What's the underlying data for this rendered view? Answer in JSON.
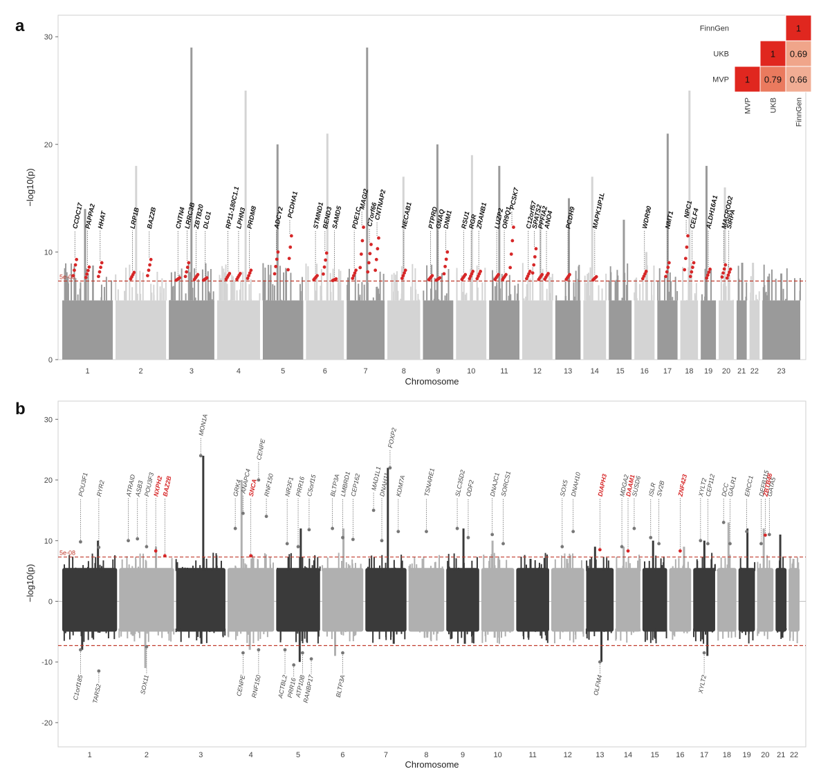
{
  "panel_a_letter": "a",
  "panel_b_letter": "b",
  "chart_data": [
    {
      "type": "scatter",
      "panel": "a",
      "subtype": "manhattan",
      "ylabel": "−log10(p)",
      "xlabel": "Chromosome",
      "ylim": [
        0,
        32
      ],
      "yticks": [
        0,
        10,
        20,
        30
      ],
      "threshold_label": "5e-08",
      "threshold": 7.3,
      "chromosomes": [
        "1",
        "2",
        "3",
        "4",
        "5",
        "6",
        "7",
        "8",
        "9",
        "10",
        "11",
        "12",
        "13",
        "14",
        "15",
        "16",
        "17",
        "18",
        "19",
        "20",
        "21",
        "22",
        "23"
      ],
      "chrom_peaks": [
        14,
        18,
        29,
        25,
        20,
        21,
        29,
        17,
        20,
        19,
        18,
        14,
        15,
        17,
        13,
        10,
        21,
        25,
        18,
        16,
        9,
        9,
        8
      ],
      "loci": [
        {
          "gene": "CCDC17",
          "chr": "1",
          "p": 9.3
        },
        {
          "gene": "PAPPA2",
          "chr": "1",
          "p": 8.6
        },
        {
          "gene": "HHAT",
          "chr": "1",
          "p": 9.0
        },
        {
          "gene": "LRP1B",
          "chr": "2",
          "p": 8.1
        },
        {
          "gene": "BAZ2B",
          "chr": "2",
          "p": 9.3
        },
        {
          "gene": "CNTN4",
          "chr": "3",
          "p": 7.6
        },
        {
          "gene": "LRRC3B",
          "chr": "3",
          "p": 9.0
        },
        {
          "gene": "ZBTB20",
          "chr": "3",
          "p": 7.9
        },
        {
          "gene": "DLG1",
          "chr": "3",
          "p": 7.6
        },
        {
          "gene": "RP11-180C1.1",
          "chr": "4",
          "p": 8.0
        },
        {
          "gene": "LPHN3",
          "chr": "4",
          "p": 8.0
        },
        {
          "gene": "PRDM8",
          "chr": "4",
          "p": 8.3
        },
        {
          "gene": "ADCY2",
          "chr": "5",
          "p": 10.0
        },
        {
          "gene": "PCDHA1",
          "chr": "5",
          "p": 11.5
        },
        {
          "gene": "STMND1",
          "chr": "6",
          "p": 7.8
        },
        {
          "gene": "BEND3",
          "chr": "6",
          "p": 9.9
        },
        {
          "gene": "SAMD5",
          "chr": "6",
          "p": 7.5
        },
        {
          "gene": "PDE1C",
          "chr": "7",
          "p": 8.3
        },
        {
          "gene": "MAGI2",
          "chr": "7",
          "p": 12.3
        },
        {
          "gene": "C7orf66",
          "chr": "7",
          "p": 10.7
        },
        {
          "gene": "CNTNAP2",
          "chr": "7",
          "p": 11.3
        },
        {
          "gene": "NECAB1",
          "chr": "8",
          "p": 8.3
        },
        {
          "gene": "PTPRD",
          "chr": "9",
          "p": 7.8
        },
        {
          "gene": "GNAQ",
          "chr": "9",
          "p": 7.6
        },
        {
          "gene": "DNM1",
          "chr": "9",
          "p": 10.0
        },
        {
          "gene": "RSU1",
          "chr": "10",
          "p": 7.9
        },
        {
          "gene": "RGR",
          "chr": "10",
          "p": 8.2
        },
        {
          "gene": "ZRANB1",
          "chr": "10",
          "p": 8.2
        },
        {
          "gene": "LUZP2",
          "chr": "11",
          "p": 7.9
        },
        {
          "gene": "OR9Q1",
          "chr": "11",
          "p": 7.9
        },
        {
          "gene": "PCSK7",
          "chr": "11",
          "p": 12.3
        },
        {
          "gene": "C12orf57",
          "chr": "12",
          "p": 8.2
        },
        {
          "gene": "SPATS2",
          "chr": "12",
          "p": 10.3
        },
        {
          "gene": "PPFIA2",
          "chr": "12",
          "p": 7.9
        },
        {
          "gene": "ANO4",
          "chr": "12",
          "p": 8.0
        },
        {
          "gene": "PCDH9",
          "chr": "13",
          "p": 7.9
        },
        {
          "gene": "MAPK1IP1L",
          "chr": "14",
          "p": 7.7
        },
        {
          "gene": "WDR90",
          "chr": "16",
          "p": 8.2
        },
        {
          "gene": "NMT1",
          "chr": "17",
          "p": 9.0
        },
        {
          "gene": "NPC1",
          "chr": "18",
          "p": 11.5
        },
        {
          "gene": "CELF4",
          "chr": "18",
          "p": 9.0
        },
        {
          "gene": "ALDH16A1",
          "chr": "19",
          "p": 8.4
        },
        {
          "gene": "MACROD2",
          "chr": "20",
          "p": 8.8
        },
        {
          "gene": "SIRPA",
          "chr": "20",
          "p": 8.4
        }
      ],
      "heatmap": {
        "rows": [
          "FinnGen",
          "UKB",
          "MVP"
        ],
        "cols": [
          "MVP",
          "UKB",
          "FinnGen"
        ],
        "cells": [
          {
            "row": "FinnGen",
            "col": "FinnGen",
            "value": "1"
          },
          {
            "row": "UKB",
            "col": "UKB",
            "value": "1"
          },
          {
            "row": "UKB",
            "col": "FinnGen",
            "value": "0.69"
          },
          {
            "row": "MVP",
            "col": "MVP",
            "value": "1"
          },
          {
            "row": "MVP",
            "col": "UKB",
            "value": "0.79"
          },
          {
            "row": "MVP",
            "col": "FinnGen",
            "value": "0.66"
          }
        ],
        "diag_color": "#e0271f",
        "colors": {
          "0.79": "#ea7a5e",
          "0.69": "#f0a58a",
          "0.66": "#f1ad94"
        }
      }
    },
    {
      "type": "scatter",
      "panel": "b",
      "subtype": "miami",
      "ylabel": "−log10(p)",
      "xlabel": "Chromosome",
      "ylim": [
        -24,
        33
      ],
      "yticks": [
        -20,
        -10,
        0,
        10,
        20,
        30
      ],
      "threshold_label": "5e-08",
      "threshold": 7.3,
      "chromosomes": [
        "1",
        "2",
        "3",
        "4",
        "5",
        "6",
        "7",
        "8",
        "9",
        "10",
        "11",
        "12",
        "13",
        "14",
        "15",
        "16",
        "17",
        "18",
        "19",
        "20",
        "21",
        "22"
      ],
      "chrom_peaks_up": [
        10,
        9,
        24,
        20,
        12,
        12,
        22,
        7,
        12,
        10,
        7,
        7,
        9,
        9,
        10,
        9,
        10,
        13,
        12,
        12,
        11,
        7
      ],
      "chrom_peaks_down": [
        8,
        11,
        7,
        8,
        10,
        9,
        7,
        6,
        7,
        6,
        6,
        5,
        10,
        5,
        6,
        5,
        9,
        5,
        5,
        5,
        6,
        4
      ],
      "loci_up": [
        {
          "gene": "POU3F1",
          "chr": "1",
          "p": 9.8,
          "highlight": false
        },
        {
          "gene": "RYR2",
          "chr": "1",
          "p": 8.9,
          "highlight": false
        },
        {
          "gene": "ATRAID",
          "chr": "2",
          "p": 10.0,
          "highlight": false
        },
        {
          "gene": "ASB3",
          "chr": "2",
          "p": 10.3,
          "highlight": false
        },
        {
          "gene": "POU3F3",
          "chr": "2",
          "p": 9.0,
          "highlight": false
        },
        {
          "gene": "NXPH2",
          "chr": "2",
          "p": 8.3,
          "highlight": true
        },
        {
          "gene": "BAZ2B",
          "chr": "2",
          "p": 7.5,
          "highlight": true
        },
        {
          "gene": "MON1A",
          "chr": "3",
          "p": 24.0,
          "highlight": false
        },
        {
          "gene": "GRK4",
          "chr": "4",
          "p": 12.0,
          "highlight": false
        },
        {
          "gene": "ANAPC4",
          "chr": "4",
          "p": 14.5,
          "highlight": false
        },
        {
          "gene": "SNCA",
          "chr": "4",
          "p": 7.5,
          "highlight": true
        },
        {
          "gene": "CENPE",
          "chr": "4",
          "p": 20.0,
          "highlight": false
        },
        {
          "gene": "RNF150",
          "chr": "4",
          "p": 14.0,
          "highlight": false
        },
        {
          "gene": "NR2F1",
          "chr": "5",
          "p": 9.5,
          "highlight": false
        },
        {
          "gene": "PRR16",
          "chr": "5",
          "p": 9.0,
          "highlight": false
        },
        {
          "gene": "C5orf15",
          "chr": "5",
          "p": 11.8,
          "highlight": false
        },
        {
          "gene": "BLTP3A",
          "chr": "6",
          "p": 12.0,
          "highlight": false
        },
        {
          "gene": "LMBRD1",
          "chr": "6",
          "p": 10.5,
          "highlight": false
        },
        {
          "gene": "CEP162",
          "chr": "6",
          "p": 10.2,
          "highlight": false
        },
        {
          "gene": "MAD1L1",
          "chr": "7",
          "p": 15.0,
          "highlight": false
        },
        {
          "gene": "DNAH11",
          "chr": "7",
          "p": 10.0,
          "highlight": false
        },
        {
          "gene": "FOXP2",
          "chr": "7",
          "p": 22.0,
          "highlight": false
        },
        {
          "gene": "KDM7A",
          "chr": "7",
          "p": 11.5,
          "highlight": false
        },
        {
          "gene": "TSNARE1",
          "chr": "8",
          "p": 11.5,
          "highlight": false
        },
        {
          "gene": "SLC35D2",
          "chr": "9",
          "p": 12.0,
          "highlight": false
        },
        {
          "gene": "ODF2",
          "chr": "9",
          "p": 10.5,
          "highlight": false
        },
        {
          "gene": "DNAJC1",
          "chr": "10",
          "p": 11.0,
          "highlight": false
        },
        {
          "gene": "SORCS1",
          "chr": "10",
          "p": 9.5,
          "highlight": false
        },
        {
          "gene": "SOX5",
          "chr": "12",
          "p": 9.0,
          "highlight": false
        },
        {
          "gene": "DNAH10",
          "chr": "12",
          "p": 11.5,
          "highlight": false
        },
        {
          "gene": "DIAPH3",
          "chr": "13",
          "p": 8.5,
          "highlight": true
        },
        {
          "gene": "MDGA2",
          "chr": "14",
          "p": 9.0,
          "highlight": false
        },
        {
          "gene": "DAAM1",
          "chr": "14",
          "p": 8.3,
          "highlight": true
        },
        {
          "gene": "SUSD6",
          "chr": "14",
          "p": 12.0,
          "highlight": false
        },
        {
          "gene": "ISLR",
          "chr": "15",
          "p": 10.5,
          "highlight": false
        },
        {
          "gene": "SV2B",
          "chr": "15",
          "p": 9.5,
          "highlight": false
        },
        {
          "gene": "ZNF423",
          "chr": "16",
          "p": 8.3,
          "highlight": true
        },
        {
          "gene": "XYLT2",
          "chr": "17",
          "p": 10.0,
          "highlight": false
        },
        {
          "gene": "CEP112",
          "chr": "17",
          "p": 9.5,
          "highlight": false
        },
        {
          "gene": "DCC",
          "chr": "18",
          "p": 13.0,
          "highlight": false
        },
        {
          "gene": "GALR1",
          "chr": "18",
          "p": 9.5,
          "highlight": false
        },
        {
          "gene": "ERCC1",
          "chr": "19",
          "p": 11.5,
          "highlight": false
        },
        {
          "gene": "DEFB115",
          "chr": "20",
          "p": 9.5,
          "highlight": false
        },
        {
          "gene": "ZBTB46",
          "chr": "20",
          "p": 10.9,
          "highlight": true
        },
        {
          "gene": "GATA5",
          "chr": "20",
          "p": 11.0,
          "highlight": false
        }
      ],
      "loci_down": [
        {
          "gene": "C1orf185",
          "chr": "1",
          "p": -8.0
        },
        {
          "gene": "TARS2",
          "chr": "1",
          "p": -11.5
        },
        {
          "gene": "SOX11",
          "chr": "2",
          "p": -7.5
        },
        {
          "gene": "CENPE",
          "chr": "4",
          "p": -8.5
        },
        {
          "gene": "RNF150",
          "chr": "4",
          "p": -8.0
        },
        {
          "gene": "ACTBL2",
          "chr": "5",
          "p": -8.0
        },
        {
          "gene": "PRR16",
          "chr": "5",
          "p": -10.5
        },
        {
          "gene": "ATP10B",
          "chr": "5",
          "p": -8.5
        },
        {
          "gene": "RANBP17",
          "chr": "5",
          "p": -9.5
        },
        {
          "gene": "BLTP3A",
          "chr": "6",
          "p": -8.5
        },
        {
          "gene": "OLFM4",
          "chr": "13",
          "p": -10.0
        },
        {
          "gene": "XYLT2",
          "chr": "17",
          "p": -8.5
        }
      ],
      "colors": {
        "dark": "#3a3a3a",
        "light": "#b0b0b0",
        "highlight": "#d62728",
        "threshold": "#c0392b"
      }
    }
  ],
  "colors_a": {
    "dark": "#9a9a9a",
    "light": "#d4d4d4",
    "hit": "#d62728",
    "threshold": "#c0392b"
  }
}
